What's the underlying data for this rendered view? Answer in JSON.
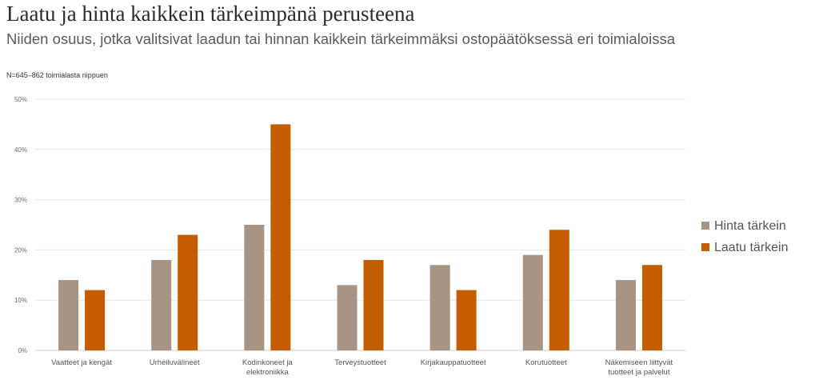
{
  "title": "Laatu ja hinta kaikkein tärkeimpänä perusteena",
  "subtitle": "Niiden osuus, jotka valitsivat laadun tai hinnan kaikkein tärkeimmäksi ostopäätöksessä eri toimialoissa",
  "note": "N=645–862 toimialasta riippuen",
  "chart_data": {
    "type": "bar",
    "categories": [
      [
        "Vaatteet ja kengät"
      ],
      [
        "Urheiluvälineet"
      ],
      [
        "Kodinkoneet ja",
        "elektroniikka"
      ],
      [
        "Terveystuotteet"
      ],
      [
        "Kirjakauppatuotteet"
      ],
      [
        "Korutuotteet"
      ],
      [
        "Näkemiseen liittyvät",
        "tuotteet ja  palvelut"
      ]
    ],
    "series": [
      {
        "name": "Hinta tärkein",
        "color": "#A89483",
        "values": [
          14,
          18,
          25,
          13,
          17,
          19,
          14
        ]
      },
      {
        "name": "Laatu tärkein",
        "color": "#C45C00",
        "values": [
          12,
          23,
          45,
          18,
          12,
          24,
          17
        ]
      }
    ],
    "yticks": [
      "0%",
      "10%",
      "20%",
      "30%",
      "40%",
      "50%"
    ],
    "ylim": [
      0,
      50
    ],
    "grid": true,
    "legend": "right"
  }
}
